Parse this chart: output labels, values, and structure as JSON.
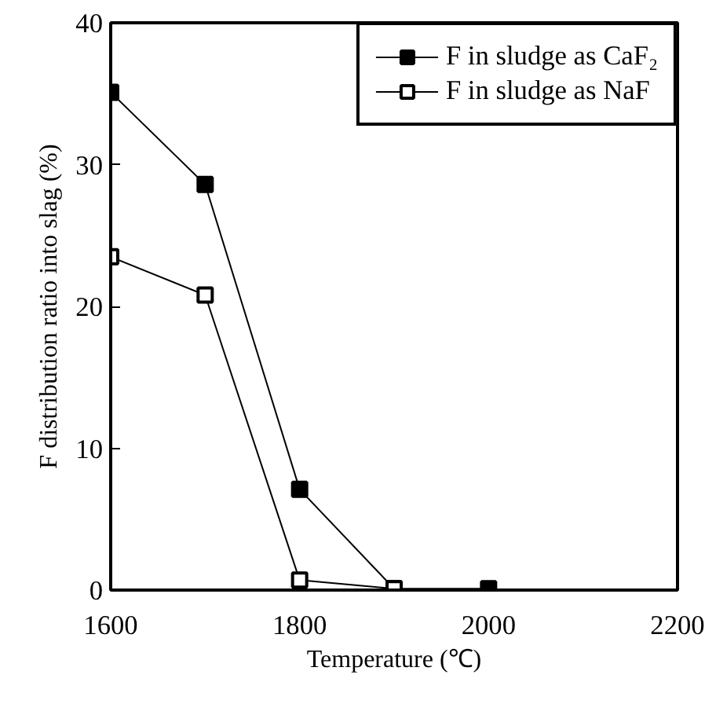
{
  "chart_data": {
    "type": "line",
    "xlabel": "Temperature (℃)",
    "ylabel": "F distribution ratio into slag (%)",
    "x": [
      1600,
      1700,
      1800,
      1900,
      2000
    ],
    "series": [
      {
        "name": "F in sludge as CaF₂",
        "color": "#000000",
        "marker": "square",
        "values": [
          35.1,
          28.6,
          7.1,
          0.1,
          0.1
        ]
      },
      {
        "name": "F in sludge as NaF",
        "color": "#000000",
        "marker": "square",
        "values": [
          23.5,
          20.8,
          0.7,
          0.1,
          null
        ]
      }
    ],
    "xlim": [
      1600,
      2200
    ],
    "ylim": [
      0,
      40
    ],
    "xticks": [
      1600,
      1800,
      2000,
      2200
    ],
    "yticks": [
      0,
      10,
      20,
      30,
      40
    ],
    "grid": false,
    "legend": "top right",
    "line_style": "solid"
  }
}
